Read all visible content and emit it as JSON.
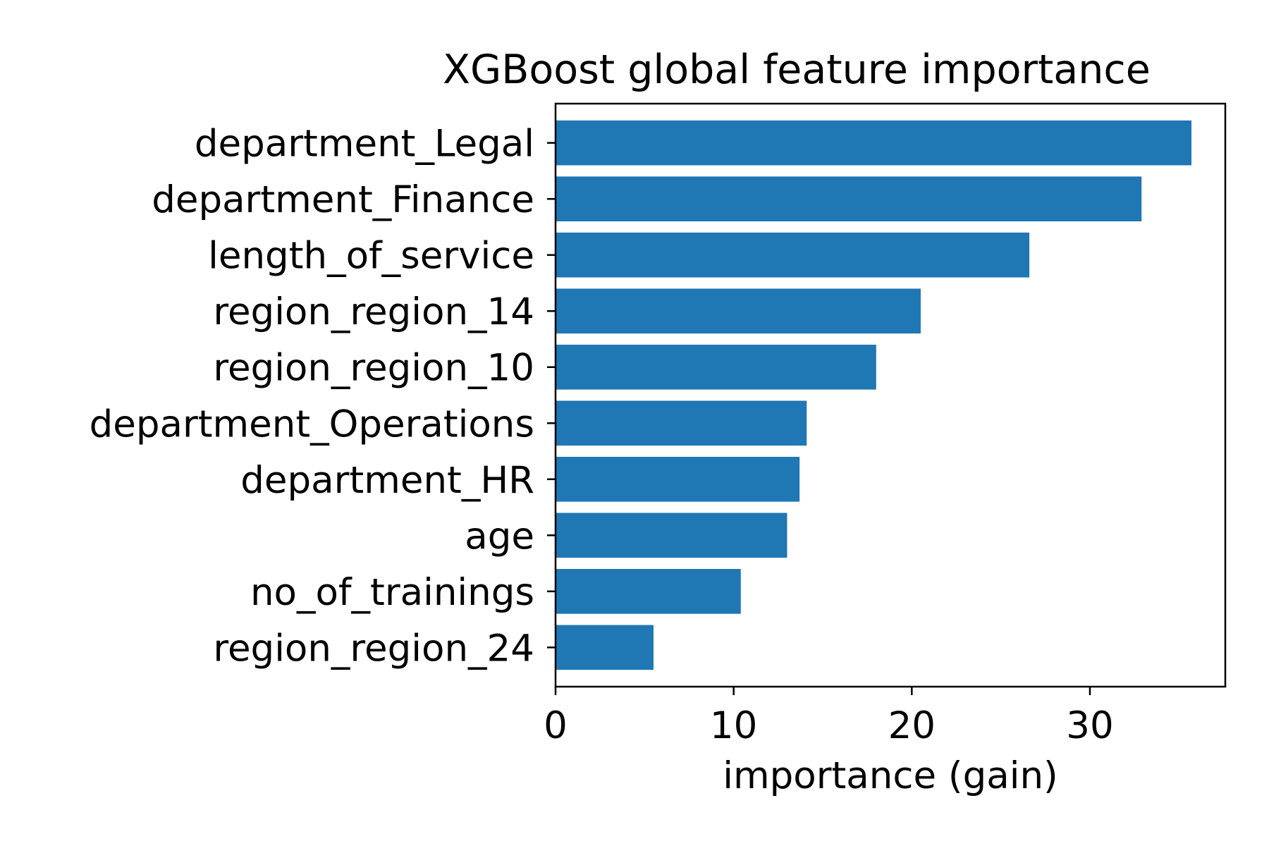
{
  "chart_data": {
    "type": "bar",
    "orientation": "horizontal",
    "title": "XGBoost global feature importance",
    "xlabel": "importance (gain)",
    "ylabel": "",
    "categories": [
      "department_Legal",
      "department_Finance",
      "length_of_service",
      "region_region_14",
      "region_region_10",
      "department_Operations",
      "department_HR",
      "age",
      "no_of_trainings",
      "region_region_24"
    ],
    "values": [
      35.7,
      32.9,
      26.6,
      20.5,
      18.0,
      14.1,
      13.7,
      13.0,
      10.4,
      5.5
    ],
    "xlim": [
      0,
      37.6
    ],
    "xticks": [
      0,
      10,
      20,
      30
    ],
    "xtick_labels": [
      "0",
      "10",
      "20",
      "30"
    ],
    "bar_color": "#1f77b4",
    "grid": false,
    "legend": "none"
  }
}
